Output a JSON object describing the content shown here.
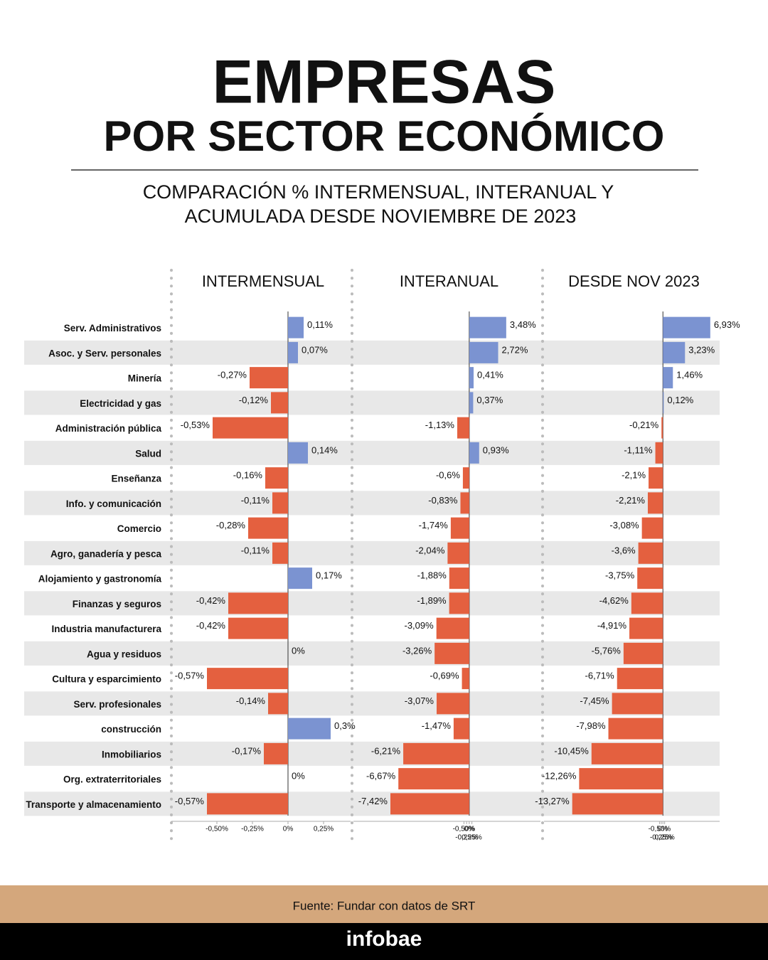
{
  "header": {
    "title": [
      "EMPRESAS",
      "POR SECTOR ECONÓMICO"
    ],
    "subtitle": [
      "COMPARACIÓN % INTERMENSUAL, INTERANUAL Y",
      "ACUMULADA DESDE NOVIEMBRE DE 2023"
    ]
  },
  "chart_data": [
    {
      "type": "bar",
      "orientation": "horizontal",
      "title": "INTERMENSUAL",
      "categories": [
        "Serv. Administrativos",
        "Asoc. y Serv. personales",
        "Minería",
        "Electricidad y gas",
        "Administración pública",
        "Salud",
        "Enseñanza",
        "Info. y comunicación",
        "Comercio",
        "Agro, ganadería y pesca",
        "Alojamiento y gastronomía",
        "Finanzas y seguros",
        "Industria manufacturera",
        "Agua y residuos",
        "Cultura y esparcimiento",
        "Serv. profesionales",
        "construcción",
        "Inmobiliarios",
        "Org. extraterritoriales",
        "Transporte y almacenamiento"
      ],
      "values": [
        0.11,
        0.07,
        -0.27,
        -0.12,
        -0.53,
        0.14,
        -0.16,
        -0.11,
        -0.28,
        -0.11,
        0.17,
        -0.42,
        -0.42,
        0,
        -0.57,
        -0.14,
        0.3,
        -0.17,
        0,
        -0.57
      ],
      "value_labels": [
        "0,11%",
        "0,07%",
        "-0,27%",
        "-0,12%",
        "-0,53%",
        "0,14%",
        "-0,16%",
        "-0,11%",
        "-0,28%",
        "-0,11%",
        "0,17%",
        "-0,42%",
        "-0,42%",
        "0%",
        "-0,57%",
        "-0,14%",
        "0,3%",
        "-0,17%",
        "0%",
        "-0,57%"
      ],
      "positive_color": "#7b93d1",
      "negative_color": "#e4603f",
      "xlim": [
        -0.82,
        0.44
      ],
      "xticks": [
        {
          "value": -0.5,
          "label": "-0,50%"
        },
        {
          "value": -0.25,
          "label": "-0,25%"
        },
        {
          "value": 0,
          "label": "0%"
        },
        {
          "value": 0.25,
          "label": "0,25%"
        }
      ]
    },
    {
      "type": "bar",
      "orientation": "horizontal",
      "title": "INTERANUAL",
      "values": [
        3.48,
        2.72,
        0.41,
        0.37,
        -1.13,
        0.93,
        -0.6,
        -0.83,
        -1.74,
        -2.04,
        -1.88,
        -1.89,
        -3.09,
        -3.26,
        -0.69,
        -3.07,
        -1.47,
        -6.21,
        -6.67,
        -7.42
      ],
      "value_labels": [
        "3,48%",
        "2,72%",
        "0,41%",
        "0,37%",
        "-1,13%",
        "0,93%",
        "-0,6%",
        "-0,83%",
        "-1,74%",
        "-2,04%",
        "-1,88%",
        "-1,89%",
        "-3,09%",
        "-3,26%",
        "-0,69%",
        "-3,07%",
        "-1,47%",
        "-6,21%",
        "-6,67%",
        "-7,42%"
      ],
      "positive_color": "#7b93d1",
      "negative_color": "#e4603f",
      "xlim": [
        -10.9,
        6.7
      ],
      "xticks": [
        {
          "value": -0.5,
          "label": "-0,50%"
        },
        {
          "value": -0.25,
          "label": "-0,25%"
        },
        {
          "value": 0,
          "label": "0%"
        },
        {
          "value": 0.25,
          "label": "0,25%"
        }
      ]
    },
    {
      "type": "bar",
      "orientation": "horizontal",
      "title": "DESDE NOV 2023",
      "values": [
        6.93,
        3.23,
        1.46,
        0.12,
        -0.21,
        -1.11,
        -2.1,
        -2.21,
        -3.08,
        -3.6,
        -3.75,
        -4.62,
        -4.91,
        -5.76,
        -6.71,
        -7.45,
        -7.98,
        -10.45,
        -12.26,
        -13.27
      ],
      "value_labels": [
        "6,93%",
        "3,23%",
        "1,46%",
        "0,12%",
        "-0,21%",
        "-1,11%",
        "-2,1%",
        "-2,21%",
        "-3,08%",
        "-3,6%",
        "-3,75%",
        "-4,62%",
        "-4,91%",
        "-5,76%",
        "-6,71%",
        "-7,45%",
        "-7,98%",
        "-10,45%",
        "-12,26%",
        "-13,27%"
      ],
      "positive_color": "#7b93d1",
      "negative_color": "#e4603f",
      "xlim": [
        -17.4,
        8.3
      ],
      "xticks": [
        {
          "value": -0.5,
          "label": "-0,50%"
        },
        {
          "value": -0.25,
          "label": "-0,25%"
        },
        {
          "value": 0,
          "label": "0%"
        },
        {
          "value": 0.25,
          "label": "0,25%"
        }
      ]
    }
  ],
  "footer": {
    "source": "Fuente: Fundar con datos de SRT",
    "brand": "infobae"
  }
}
